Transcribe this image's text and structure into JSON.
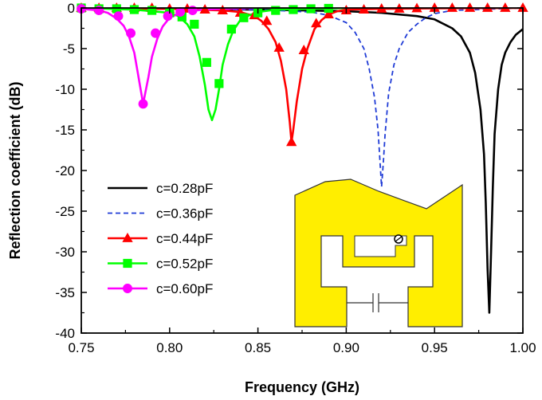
{
  "chart_data": {
    "type": "line",
    "xlabel": "Frequency (GHz)",
    "ylabel": "Reflection coefficient (dB)",
    "xlim": [
      0.75,
      1.0
    ],
    "ylim": [
      -40,
      0
    ],
    "x_ticks": [
      0.75,
      0.8,
      0.85,
      0.9,
      0.95,
      1.0
    ],
    "x_tick_labels": [
      "0.75",
      "0.80",
      "0.85",
      "0.90",
      "0.95",
      "1.00"
    ],
    "y_ticks": [
      0,
      -5,
      -10,
      -15,
      -20,
      -25,
      -30,
      -35,
      -40
    ],
    "y_tick_labels": [
      "0",
      "-5",
      "-10",
      "-15",
      "-20",
      "-25",
      "-30",
      "-35",
      "-40"
    ],
    "grid": false,
    "legend_position": "lower-left",
    "series": [
      {
        "name": "c=0.28pF",
        "color": "#000000",
        "line_style": "solid",
        "marker": "none",
        "resonance_ghz": 0.981,
        "min_db": -37.5,
        "x": [
          0.75,
          0.8,
          0.85,
          0.9,
          0.92,
          0.94,
          0.95,
          0.96,
          0.965,
          0.97,
          0.973,
          0.976,
          0.978,
          0.979,
          0.98,
          0.981,
          0.982,
          0.983,
          0.984,
          0.986,
          0.988,
          0.99,
          0.993,
          0.996,
          1.0
        ],
        "y": [
          0,
          -0.1,
          -0.2,
          -0.4,
          -0.6,
          -1.0,
          -1.4,
          -2.5,
          -3.5,
          -5.5,
          -8.0,
          -12.5,
          -18.0,
          -24.0,
          -32.0,
          -37.5,
          -30.0,
          -22.0,
          -15.5,
          -10.0,
          -7.0,
          -5.5,
          -4.2,
          -3.3,
          -2.6
        ]
      },
      {
        "name": "c=0.36pF",
        "color": "#1f3bd6",
        "line_style": "dashed",
        "marker": "none",
        "resonance_ghz": 0.92,
        "min_db": -22,
        "x": [
          0.75,
          0.85,
          0.88,
          0.89,
          0.9,
          0.905,
          0.91,
          0.913,
          0.916,
          0.918,
          0.919,
          0.92,
          0.921,
          0.922,
          0.924,
          0.927,
          0.93,
          0.935,
          0.94,
          0.945,
          0.95,
          0.96,
          1.0
        ],
        "y": [
          -0.1,
          -0.2,
          -0.5,
          -0.9,
          -1.8,
          -3.0,
          -5.0,
          -7.5,
          -11.0,
          -15.0,
          -18.5,
          -22.0,
          -19.0,
          -15.5,
          -10.5,
          -7.0,
          -5.0,
          -3.0,
          -2.0,
          -1.2,
          -0.7,
          -0.3,
          0
        ]
      },
      {
        "name": "c=0.44pF",
        "color": "#ff0000",
        "line_style": "solid",
        "marker": "triangle",
        "resonance_ghz": 0.869,
        "min_db": -16.5,
        "x": [
          0.75,
          0.8,
          0.83,
          0.84,
          0.848,
          0.852,
          0.856,
          0.86,
          0.863,
          0.866,
          0.868,
          0.869,
          0.87,
          0.872,
          0.875,
          0.878,
          0.882,
          0.886,
          0.89,
          0.895,
          0.9,
          0.92,
          0.95,
          1.0
        ],
        "y": [
          0,
          -0.1,
          -0.3,
          -0.5,
          -1.0,
          -1.6,
          -2.6,
          -4.2,
          -6.5,
          -10.0,
          -14.0,
          -16.5,
          -15.0,
          -11.5,
          -7.5,
          -5.0,
          -2.6,
          -1.5,
          -0.8,
          -0.4,
          -0.2,
          -0.1,
          -0.05,
          0
        ],
        "marker_x": [
          0.75,
          0.76,
          0.77,
          0.78,
          0.79,
          0.8,
          0.81,
          0.82,
          0.83,
          0.84,
          0.848,
          0.855,
          0.862,
          0.869,
          0.876,
          0.883,
          0.89,
          0.9,
          0.91,
          0.92,
          0.93,
          0.94,
          0.95,
          0.96,
          0.97,
          0.98,
          0.99,
          1.0
        ],
        "marker_y": [
          0,
          0,
          0,
          0,
          0,
          -0.1,
          -0.1,
          -0.2,
          -0.3,
          -0.6,
          -0.9,
          -1.6,
          -4.9,
          -16.5,
          -5.2,
          -1.9,
          -0.8,
          -0.3,
          -0.2,
          -0.1,
          -0.1,
          -0.05,
          0,
          0,
          0,
          0,
          0,
          0
        ]
      },
      {
        "name": "c=0.52pF",
        "color": "#00ff00",
        "line_style": "solid",
        "marker": "square",
        "resonance_ghz": 0.824,
        "min_db": -13.8,
        "x": [
          0.75,
          0.78,
          0.8,
          0.805,
          0.81,
          0.814,
          0.817,
          0.82,
          0.822,
          0.824,
          0.826,
          0.828,
          0.83,
          0.833,
          0.836,
          0.84,
          0.845,
          0.85,
          0.86,
          0.88,
          0.9
        ],
        "y": [
          0,
          -0.2,
          -0.6,
          -1.0,
          -2.0,
          -3.5,
          -6.0,
          -9.5,
          -12.5,
          -13.8,
          -12.5,
          -10.0,
          -7.0,
          -4.5,
          -2.8,
          -1.5,
          -0.9,
          -0.5,
          -0.2,
          -0.1,
          0
        ],
        "marker_x": [
          0.75,
          0.76,
          0.77,
          0.78,
          0.79,
          0.8,
          0.807,
          0.814,
          0.821,
          0.828,
          0.835,
          0.842,
          0.85,
          0.86,
          0.87,
          0.88,
          0.89
        ],
        "marker_y": [
          0,
          -0.1,
          -0.1,
          -0.2,
          -0.3,
          -0.6,
          -1.1,
          -2.0,
          -6.7,
          -9.3,
          -2.6,
          -1.2,
          -0.6,
          -0.3,
          -0.2,
          -0.1,
          -0.05
        ]
      },
      {
        "name": "c=0.60pF",
        "color": "#ff00ff",
        "line_style": "solid",
        "marker": "circle",
        "resonance_ghz": 0.785,
        "min_db": -11.8,
        "x": [
          0.75,
          0.76,
          0.765,
          0.77,
          0.774,
          0.777,
          0.78,
          0.782,
          0.785,
          0.788,
          0.79,
          0.793,
          0.796,
          0.8,
          0.805,
          0.81,
          0.82,
          0.83,
          0.85
        ],
        "y": [
          -0.1,
          -0.3,
          -0.6,
          -1.3,
          -2.2,
          -3.5,
          -5.5,
          -8.0,
          -11.8,
          -8.5,
          -6.0,
          -3.8,
          -2.3,
          -1.2,
          -0.7,
          -0.4,
          -0.2,
          -0.1,
          0
        ],
        "marker_x": [
          0.75,
          0.76,
          0.771,
          0.778,
          0.785,
          0.792,
          0.799,
          0.806,
          0.813
        ],
        "marker_y": [
          -0.1,
          -0.3,
          -1.0,
          -3.1,
          -11.8,
          -3.1,
          -1.0,
          -0.5,
          -0.3
        ]
      }
    ]
  },
  "inset": {
    "description_icon": "antenna-structure-icon",
    "fill_color": "#ffee00",
    "stroke_color": "#333333"
  }
}
